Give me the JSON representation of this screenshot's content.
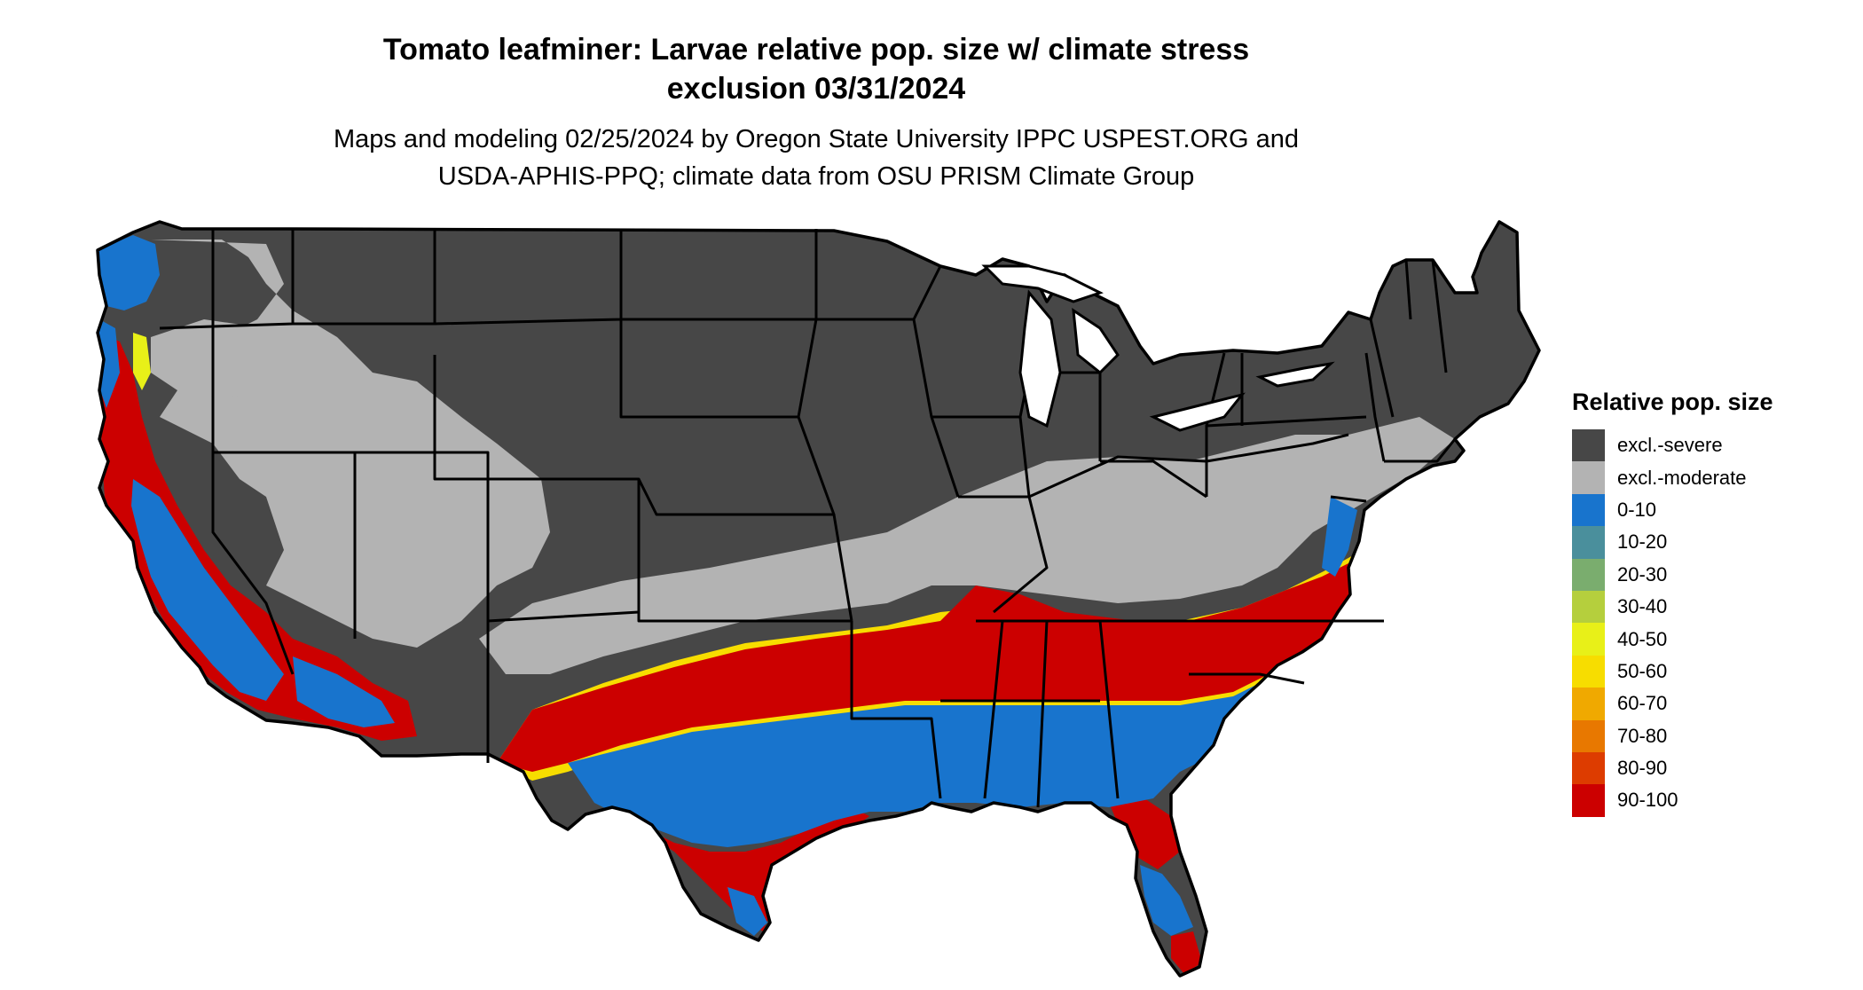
{
  "title": {
    "line1": "Tomato leafminer: Larvae relative pop. size w/ climate stress",
    "line2": "exclusion 03/31/2024"
  },
  "subtitle": {
    "line1": "Maps and modeling 02/25/2024 by Oregon State University IPPC USPEST.ORG and",
    "line2": "USDA-APHIS-PPQ; climate data from OSU PRISM Climate Group"
  },
  "legend": {
    "title": "Relative pop. size",
    "items": [
      {
        "label": "excl.-severe",
        "color": "#474747"
      },
      {
        "label": "excl.-moderate",
        "color": "#b3b3b3"
      },
      {
        "label": "0-10",
        "color": "#1874cd"
      },
      {
        "label": "10-20",
        "color": "#4a8f9c"
      },
      {
        "label": "20-30",
        "color": "#7aad6e"
      },
      {
        "label": "30-40",
        "color": "#b5cf3d"
      },
      {
        "label": "40-50",
        "color": "#e8f018"
      },
      {
        "label": "50-60",
        "color": "#f7dd00"
      },
      {
        "label": "60-70",
        "color": "#f0a900"
      },
      {
        "label": "70-80",
        "color": "#e87800"
      },
      {
        "label": "80-90",
        "color": "#dd3c00"
      },
      {
        "label": "90-100",
        "color": "#cc0000"
      }
    ]
  },
  "map": {
    "region": "conterminous-united-states",
    "colors": {
      "excl_severe": "#474747",
      "excl_moderate": "#b3b3b3",
      "blue": "#1874cd",
      "red": "#cc0000",
      "yellow": "#f7dd00",
      "border": "#000000"
    }
  }
}
